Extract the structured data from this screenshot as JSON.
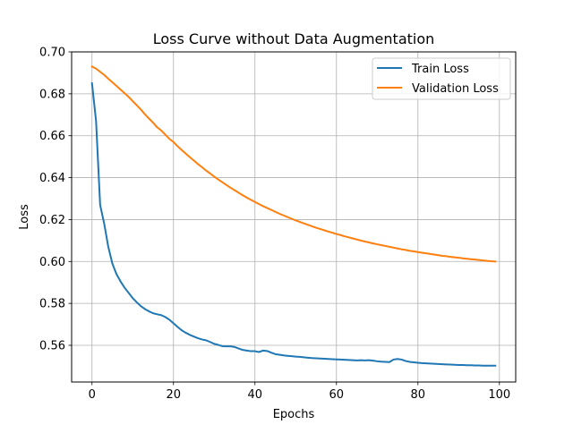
{
  "chart_data": {
    "type": "line",
    "title": "Loss Curve without Data Augmentation",
    "xlabel": "Epochs",
    "ylabel": "Loss",
    "xlim": [
      -5,
      104
    ],
    "ylim": [
      0.5425,
      0.7
    ],
    "x_ticks": [
      0,
      20,
      40,
      60,
      80,
      100
    ],
    "y_ticks": [
      0.56,
      0.58,
      0.6,
      0.62,
      0.64,
      0.66,
      0.68,
      0.7
    ],
    "x_tick_labels": [
      "0",
      "20",
      "40",
      "60",
      "80",
      "100"
    ],
    "y_tick_labels": [
      "0.56",
      "0.58",
      "0.60",
      "0.62",
      "0.64",
      "0.66",
      "0.68",
      "0.70"
    ],
    "grid": true,
    "legend_position": "upper right",
    "series": [
      {
        "name": "Train Loss",
        "color": "#1f77b4",
        "x": [
          0,
          1,
          2,
          3,
          4,
          5,
          6,
          7,
          8,
          9,
          10,
          11,
          12,
          13,
          14,
          15,
          16,
          17,
          18,
          19,
          20,
          21,
          22,
          23,
          24,
          25,
          26,
          27,
          28,
          29,
          30,
          31,
          32,
          33,
          34,
          35,
          36,
          37,
          38,
          39,
          40,
          41,
          42,
          43,
          44,
          45,
          46,
          47,
          48,
          49,
          50,
          51,
          52,
          53,
          54,
          55,
          56,
          57,
          58,
          59,
          60,
          61,
          62,
          63,
          64,
          65,
          66,
          67,
          68,
          69,
          70,
          71,
          72,
          73,
          74,
          75,
          76,
          77,
          78,
          79,
          80,
          81,
          82,
          83,
          84,
          85,
          86,
          87,
          88,
          89,
          90,
          91,
          92,
          93,
          94,
          95,
          96,
          97,
          98,
          99
        ],
        "values": [
          0.685,
          0.667,
          0.627,
          0.618,
          0.607,
          0.599,
          0.594,
          0.5905,
          0.5875,
          0.585,
          0.5825,
          0.5805,
          0.5787,
          0.5773,
          0.5762,
          0.5753,
          0.5748,
          0.5744,
          0.5735,
          0.5722,
          0.5705,
          0.5688,
          0.5672,
          0.566,
          0.565,
          0.5642,
          0.5634,
          0.5628,
          0.5624,
          0.5616,
          0.5607,
          0.5602,
          0.5596,
          0.5595,
          0.5595,
          0.5592,
          0.5585,
          0.5578,
          0.5575,
          0.5572,
          0.5572,
          0.5568,
          0.5575,
          0.5573,
          0.5565,
          0.5558,
          0.5555,
          0.5552,
          0.555,
          0.5548,
          0.5546,
          0.5545,
          0.5543,
          0.5541,
          0.5539,
          0.5538,
          0.5537,
          0.5536,
          0.5535,
          0.5534,
          0.5533,
          0.5532,
          0.5531,
          0.553,
          0.5529,
          0.5528,
          0.5529,
          0.5528,
          0.5529,
          0.5527,
          0.5524,
          0.5522,
          0.5521,
          0.552,
          0.5532,
          0.5535,
          0.5532,
          0.5525,
          0.5521,
          0.5519,
          0.5517,
          0.5515,
          0.5514,
          0.5513,
          0.5512,
          0.5511,
          0.551,
          0.5509,
          0.5508,
          0.5507,
          0.5506,
          0.5506,
          0.5505,
          0.5505,
          0.5504,
          0.5504,
          0.5503,
          0.5503,
          0.5503,
          0.5503
        ]
      },
      {
        "name": "Validation Loss",
        "color": "#ff7f0e",
        "x": [
          0,
          1,
          2,
          3,
          4,
          5,
          6,
          7,
          8,
          9,
          10,
          11,
          12,
          13,
          14,
          15,
          16,
          17,
          18,
          19,
          20,
          21,
          22,
          23,
          24,
          25,
          26,
          27,
          28,
          29,
          30,
          31,
          32,
          33,
          34,
          35,
          36,
          37,
          38,
          39,
          40,
          41,
          42,
          43,
          44,
          45,
          46,
          47,
          48,
          49,
          50,
          51,
          52,
          53,
          54,
          55,
          56,
          57,
          58,
          59,
          60,
          61,
          62,
          63,
          64,
          65,
          66,
          67,
          68,
          69,
          70,
          71,
          72,
          73,
          74,
          75,
          76,
          77,
          78,
          79,
          80,
          81,
          82,
          83,
          84,
          85,
          86,
          87,
          88,
          89,
          90,
          91,
          92,
          93,
          94,
          95,
          96,
          97,
          98,
          99
        ],
        "values": [
          0.693,
          0.692,
          0.6905,
          0.689,
          0.6872,
          0.6855,
          0.6838,
          0.682,
          0.6803,
          0.6785,
          0.6765,
          0.6745,
          0.6725,
          0.6702,
          0.6682,
          0.6662,
          0.664,
          0.6625,
          0.6605,
          0.6585,
          0.657,
          0.655,
          0.6532,
          0.6515,
          0.6498,
          0.6482,
          0.6465,
          0.645,
          0.6434,
          0.642,
          0.6405,
          0.6391,
          0.6378,
          0.6365,
          0.6352,
          0.634,
          0.6328,
          0.6316,
          0.6305,
          0.6294,
          0.6284,
          0.6274,
          0.6264,
          0.6255,
          0.6246,
          0.6237,
          0.6228,
          0.622,
          0.6212,
          0.6204,
          0.6196,
          0.6189,
          0.6182,
          0.6175,
          0.6168,
          0.6161,
          0.6155,
          0.6149,
          0.6143,
          0.6137,
          0.6131,
          0.6126,
          0.612,
          0.6115,
          0.611,
          0.6105,
          0.61,
          0.6095,
          0.6091,
          0.6086,
          0.6082,
          0.6078,
          0.6074,
          0.607,
          0.6066,
          0.6062,
          0.6058,
          0.6055,
          0.6051,
          0.6048,
          0.6045,
          0.6042,
          0.6039,
          0.6036,
          0.6033,
          0.603,
          0.6027,
          0.6025,
          0.6022,
          0.602,
          0.6018,
          0.6015,
          0.6013,
          0.6011,
          0.6009,
          0.6007,
          0.6005,
          0.6003,
          0.6001,
          0.6
        ]
      }
    ]
  }
}
